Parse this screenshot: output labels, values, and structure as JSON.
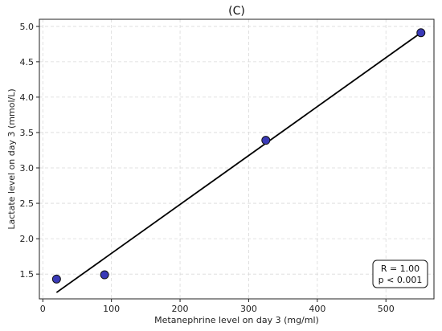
{
  "chart_data": {
    "type": "scatter",
    "title": "(C)",
    "xlabel": "Metanephrine level on day 3 (mg/ml)",
    "ylabel": "Lactate level on day 3 (mmol/L)",
    "xlim": [
      -5,
      570
    ],
    "ylim": [
      1.15,
      5.1
    ],
    "xticks": [
      0,
      100,
      200,
      300,
      400,
      500
    ],
    "yticks": [
      1.5,
      2.0,
      2.5,
      3.0,
      3.5,
      4.0,
      4.5,
      5.0
    ],
    "xtick_labels": [
      "0",
      "100",
      "200",
      "300",
      "400",
      "500"
    ],
    "ytick_labels": [
      "1.5",
      "2.0",
      "2.5",
      "3.0",
      "3.5",
      "4.0",
      "4.5",
      "5.0"
    ],
    "grid": true,
    "points": [
      {
        "x": 20,
        "y": 1.43
      },
      {
        "x": 90,
        "y": 1.49
      },
      {
        "x": 325,
        "y": 3.39
      },
      {
        "x": 551,
        "y": 4.91
      }
    ],
    "fit_line": {
      "x": [
        20,
        551
      ],
      "y": [
        1.24,
        4.91
      ]
    },
    "annotation": {
      "line1": "R = 1.00",
      "line2": "p < 0.001"
    },
    "colors": {
      "point_fill": "#3a3ab8",
      "point_edge": "#111111",
      "line": "#000000",
      "grid": "#d9d9d9"
    }
  }
}
